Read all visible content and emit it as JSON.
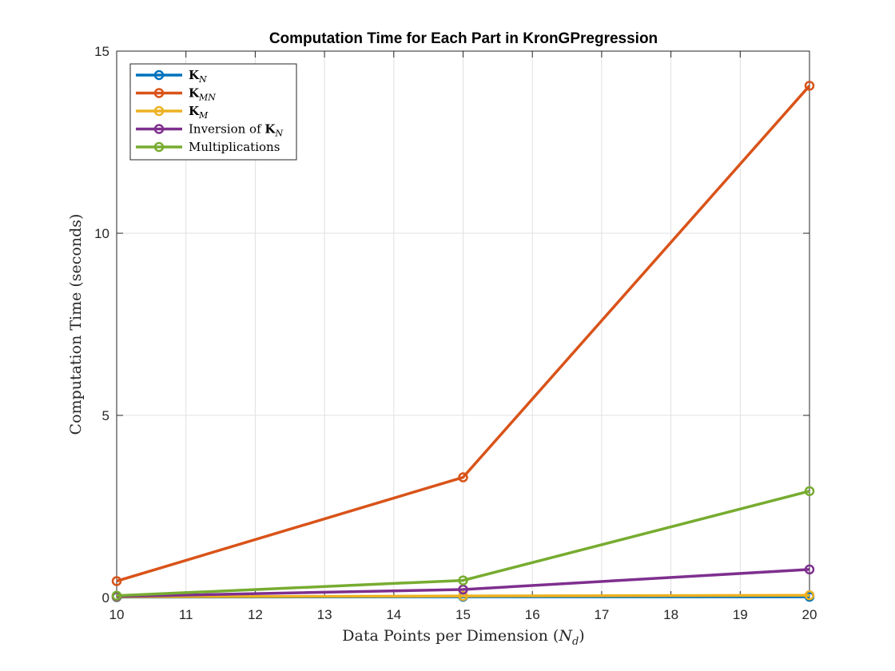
{
  "chart_data": {
    "type": "line",
    "title": "Computation Time for Each Part in KronGPregression",
    "xlabel": "Data Points per Dimension (N_d)",
    "xlabel_main": "Data Points per Dimension (",
    "xlabel_var": "N",
    "xlabel_sub": "d",
    "xlabel_close": ")",
    "ylabel": "Computation Time (seconds)",
    "xlim": [
      10,
      20
    ],
    "ylim": [
      0,
      15
    ],
    "xticks": [
      "10",
      "11",
      "12",
      "13",
      "14",
      "15",
      "16",
      "17",
      "18",
      "19",
      "20"
    ],
    "yticks": [
      "0",
      "5",
      "10",
      "15"
    ],
    "grid": true,
    "legend_position": "top-left",
    "x": [
      10,
      15,
      20
    ],
    "series": [
      {
        "name": "K_N",
        "label_main": "K",
        "label_sub": "N",
        "label_prefix": "",
        "color": "#0072BD",
        "values": [
          0.01,
          0.02,
          0.02
        ]
      },
      {
        "name": "K_MN",
        "label_main": "K",
        "label_sub": "MN",
        "label_prefix": "",
        "color": "#D95319",
        "values": [
          0.45,
          3.3,
          14.05
        ]
      },
      {
        "name": "K_M",
        "label_main": "K",
        "label_sub": "M",
        "label_prefix": "",
        "color": "#EDB120",
        "values": [
          0.02,
          0.04,
          0.06
        ]
      },
      {
        "name": "Inversion of K_N",
        "label_main": "K",
        "label_sub": "N",
        "label_prefix": "Inversion of ",
        "color": "#7E2F8E",
        "values": [
          0.03,
          0.22,
          0.77
        ]
      },
      {
        "name": "Multiplications",
        "label_main": "",
        "label_sub": "",
        "label_prefix": "Multiplications",
        "color": "#77AC30",
        "values": [
          0.05,
          0.47,
          2.92
        ]
      }
    ]
  }
}
